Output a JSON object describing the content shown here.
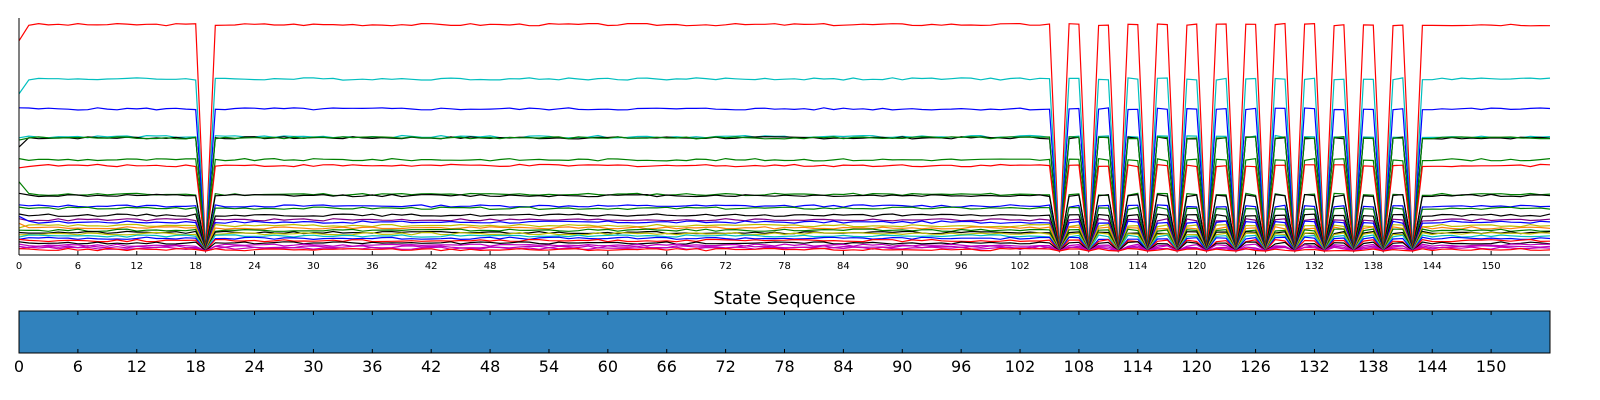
{
  "chart_data": [
    {
      "type": "line",
      "title": "",
      "xlabel": "",
      "ylabel": "",
      "x_range": [
        0,
        156
      ],
      "x_ticks": [
        0,
        6,
        12,
        18,
        24,
        30,
        36,
        42,
        48,
        54,
        60,
        66,
        72,
        78,
        84,
        90,
        96,
        102,
        108,
        114,
        120,
        126,
        132,
        138,
        144,
        150
      ],
      "y_ticks_visible": false,
      "y_range": [
        0,
        1
      ],
      "grid": false,
      "segments": [
        {
          "from": 0,
          "to": 18,
          "mode": "stable"
        },
        {
          "from": 18,
          "to": 20,
          "mode": "dip",
          "dip_at": 19
        },
        {
          "from": 20,
          "to": 105,
          "mode": "stable"
        },
        {
          "from": 105,
          "to": 143,
          "mode": "oscillating",
          "dips_at": [
            106,
            109,
            112,
            115,
            118,
            121,
            124,
            127,
            130,
            133,
            136,
            139,
            142
          ]
        },
        {
          "from": 143,
          "to": 156,
          "mode": "stable"
        }
      ],
      "series": [
        {
          "color": "#ff0000",
          "level": 0.98,
          "start": 0.91
        },
        {
          "color": "#00bfbf",
          "level": 0.745,
          "start": 0.68
        },
        {
          "color": "#0000ff",
          "level": 0.615,
          "start": 0.62
        },
        {
          "color": "#00bfbf",
          "level": 0.495,
          "start": 0.49
        },
        {
          "color": "#000000",
          "level": 0.49,
          "start": 0.45
        },
        {
          "color": "#007f00",
          "level": 0.49,
          "start": 0.48
        },
        {
          "color": "#007f00",
          "level": 0.395,
          "start": 0.4
        },
        {
          "color": "#ff0000",
          "level": 0.37,
          "start": 0.36
        },
        {
          "color": "#007f00",
          "level": 0.245,
          "start": 0.3
        },
        {
          "color": "#000000",
          "level": 0.24,
          "start": 0.25
        },
        {
          "color": "#0000ff",
          "level": 0.195,
          "start": 0.2
        },
        {
          "color": "#007f00",
          "level": 0.185,
          "start": 0.19
        },
        {
          "color": "#000000",
          "level": 0.155,
          "start": 0.16
        },
        {
          "color": "#7f007f",
          "level": 0.135,
          "start": 0.14
        },
        {
          "color": "#0000ff",
          "level": 0.125,
          "start": 0.15
        },
        {
          "color": "#bfbf00",
          "level": 0.11,
          "start": 0.1
        },
        {
          "color": "#ff7f0e",
          "level": 0.1,
          "start": 0.12
        },
        {
          "color": "#007f00",
          "level": 0.09,
          "start": 0.09
        },
        {
          "color": "#000000",
          "level": 0.08,
          "start": 0.08
        },
        {
          "color": "#bfbf00",
          "level": 0.075,
          "start": 0.07
        },
        {
          "color": "#00bfbf",
          "level": 0.065,
          "start": 0.06
        },
        {
          "color": "#0000ff",
          "level": 0.055,
          "start": 0.05
        },
        {
          "color": "#ff0000",
          "level": 0.045,
          "start": 0.05
        },
        {
          "color": "#000000",
          "level": 0.035,
          "start": 0.04
        },
        {
          "color": "#bf00bf",
          "level": 0.025,
          "start": 0.03
        },
        {
          "color": "#bf00bf",
          "level": 0.018,
          "start": 0.02
        },
        {
          "color": "#bf00bf",
          "level": 0.012,
          "start": 0.01
        },
        {
          "color": "#ff0000",
          "level": 0.006,
          "start": 0.01
        }
      ]
    },
    {
      "type": "heatmap",
      "title": "State Sequence",
      "x_range": [
        0,
        156
      ],
      "x_ticks": [
        0,
        6,
        12,
        18,
        24,
        30,
        36,
        42,
        48,
        54,
        60,
        66,
        72,
        78,
        84,
        90,
        96,
        102,
        108,
        114,
        120,
        126,
        132,
        138,
        144,
        150
      ],
      "states": [
        {
          "from": 0,
          "to": 156,
          "color": "#3182bd"
        }
      ]
    }
  ]
}
